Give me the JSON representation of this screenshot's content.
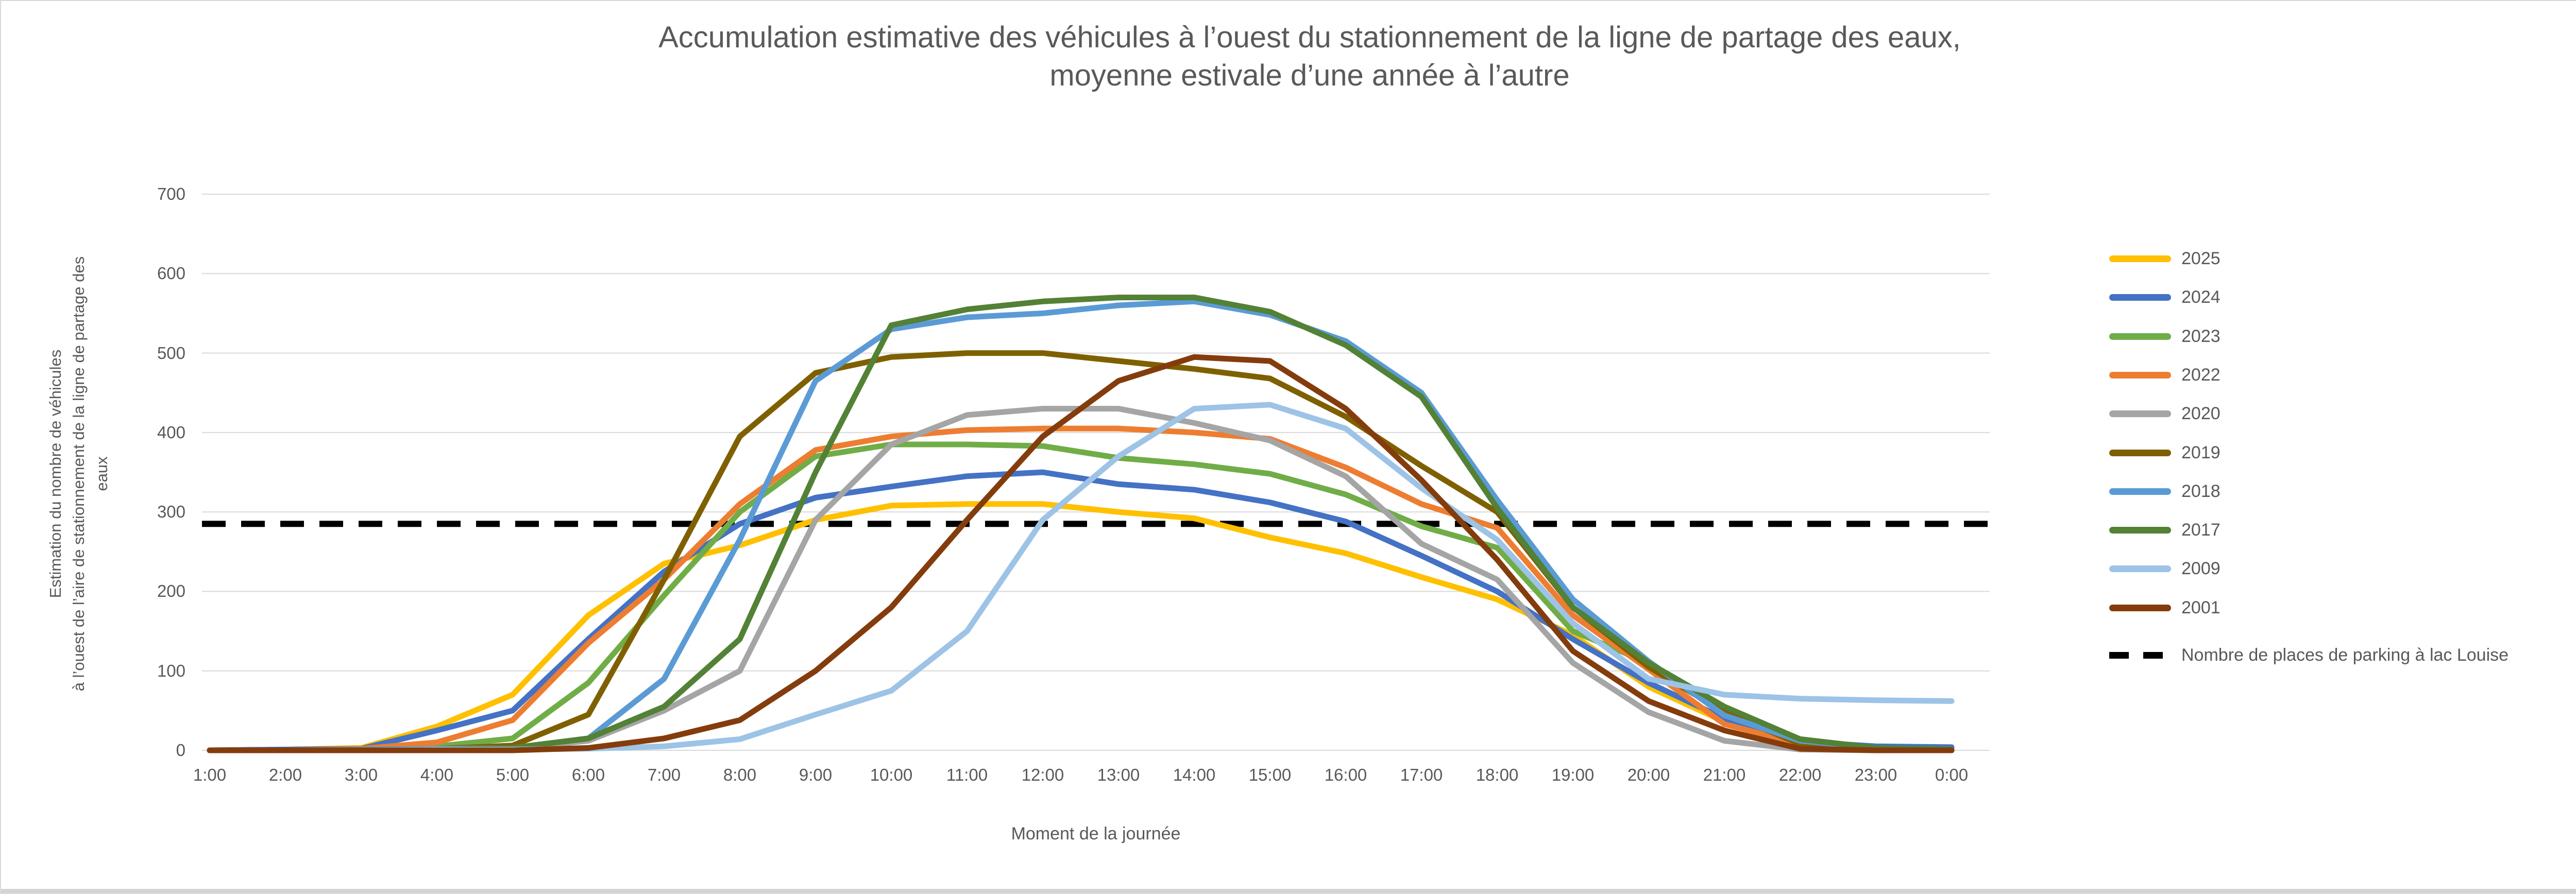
{
  "chart_data": {
    "type": "line",
    "title_line1": "Accumulation estimative des véhicules à l’ouest du stationnement de la ligne de partage des eaux,",
    "title_line2": "moyenne estivale d’une année à l’autre",
    "xlabel": "Moment de la journée",
    "ylabel_line1": "Estimation du nombre de véhicules",
    "ylabel_line2": "à l’ouest de l’aire de stationnement de la ligne de partage des eaux",
    "categories": [
      "1:00",
      "2:00",
      "3:00",
      "4:00",
      "5:00",
      "6:00",
      "7:00",
      "8:00",
      "9:00",
      "10:00",
      "11:00",
      "12:00",
      "13:00",
      "14:00",
      "15:00",
      "16:00",
      "17:00",
      "18:00",
      "19:00",
      "20:00",
      "21:00",
      "22:00",
      "23:00",
      "0:00"
    ],
    "y_ticks": [
      0,
      100,
      200,
      300,
      400,
      500,
      600,
      700
    ],
    "ylim": [
      0,
      700
    ],
    "grid": true,
    "legend_position": "right",
    "axis_text_color": "#595959",
    "gridline_color": "#d9d9d9",
    "series": [
      {
        "name": "2025",
        "color": "#FFC000",
        "values": [
          0,
          1,
          3,
          30,
          70,
          170,
          235,
          258,
          290,
          308,
          310,
          310,
          300,
          292,
          268,
          248,
          218,
          190,
          145,
          80,
          36,
          3,
          0,
          0
        ]
      },
      {
        "name": "2024",
        "color": "#4472C4",
        "values": [
          0,
          1,
          2,
          25,
          50,
          140,
          225,
          285,
          318,
          332,
          345,
          350,
          335,
          328,
          312,
          288,
          245,
          200,
          140,
          85,
          40,
          11,
          5,
          4
        ]
      },
      {
        "name": "2023",
        "color": "#70AD47",
        "values": [
          0,
          0,
          1,
          5,
          15,
          85,
          195,
          300,
          370,
          385,
          385,
          383,
          368,
          360,
          348,
          322,
          282,
          255,
          150,
          110,
          52,
          14,
          3,
          1
        ]
      },
      {
        "name": "2022",
        "color": "#ED7D31",
        "values": [
          0,
          0,
          2,
          10,
          38,
          135,
          215,
          310,
          378,
          395,
          403,
          405,
          405,
          400,
          392,
          356,
          310,
          280,
          170,
          102,
          33,
          8,
          1,
          0
        ]
      },
      {
        "name": "2020",
        "color": "#A5A5A5",
        "values": [
          0,
          0,
          0,
          1,
          2,
          12,
          50,
          100,
          290,
          385,
          422,
          430,
          430,
          412,
          390,
          345,
          260,
          215,
          110,
          48,
          12,
          1,
          0,
          0
        ]
      },
      {
        "name": "2019",
        "color": "#7F6000",
        "values": [
          0,
          0,
          1,
          2,
          6,
          45,
          215,
          395,
          475,
          495,
          500,
          500,
          490,
          480,
          468,
          420,
          358,
          300,
          180,
          105,
          48,
          8,
          1,
          0
        ]
      },
      {
        "name": "2018",
        "color": "#5B9BD5",
        "values": [
          0,
          0,
          1,
          2,
          3,
          15,
          90,
          265,
          465,
          530,
          545,
          550,
          560,
          565,
          548,
          515,
          450,
          315,
          190,
          112,
          44,
          12,
          3,
          1
        ]
      },
      {
        "name": "2017",
        "color": "#538135",
        "values": [
          0,
          0,
          0,
          1,
          3,
          15,
          55,
          140,
          350,
          535,
          555,
          565,
          570,
          570,
          552,
          510,
          445,
          305,
          180,
          110,
          55,
          14,
          3,
          1
        ]
      },
      {
        "name": "2009",
        "color": "#9DC3E6",
        "values": [
          0,
          0,
          0,
          1,
          1,
          2,
          5,
          14,
          45,
          75,
          150,
          290,
          370,
          430,
          435,
          405,
          330,
          265,
          160,
          90,
          70,
          65,
          63,
          62
        ]
      },
      {
        "name": "2001",
        "color": "#843C0C",
        "values": [
          0,
          0,
          0,
          0,
          0,
          3,
          15,
          38,
          100,
          180,
          290,
          395,
          465,
          495,
          490,
          430,
          340,
          240,
          125,
          62,
          25,
          2,
          0,
          0
        ]
      }
    ],
    "reference_line": {
      "label": "Nombre de places de parking à lac Louise",
      "value": 285,
      "color": "#000000",
      "style": "dashed"
    }
  }
}
